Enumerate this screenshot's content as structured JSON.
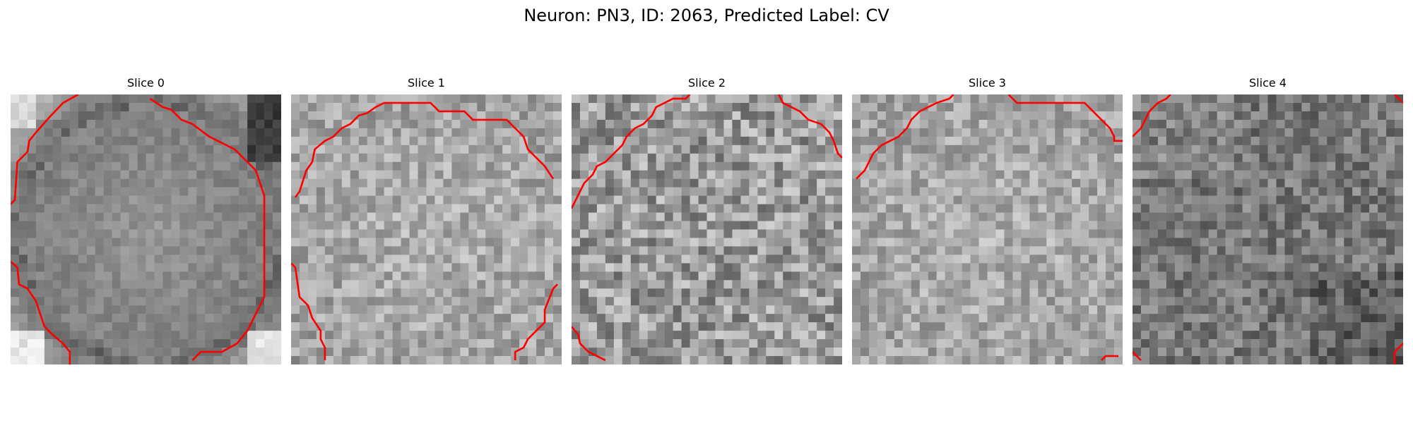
{
  "figure": {
    "title": "Neuron: PN3, ID: 2063, Predicted Label: CV"
  },
  "panels": [
    {
      "label": "Slice 0",
      "pattern": "soma"
    },
    {
      "label": "Slice 1",
      "pattern": "bright"
    },
    {
      "label": "Slice 2",
      "pattern": "noisy"
    },
    {
      "label": "Slice 3",
      "pattern": "bright"
    },
    {
      "label": "Slice 4",
      "pattern": "dark"
    }
  ],
  "colors": {
    "contour": "#ff0000",
    "background": "#ffffff",
    "colormap": "gray"
  },
  "icons": []
}
